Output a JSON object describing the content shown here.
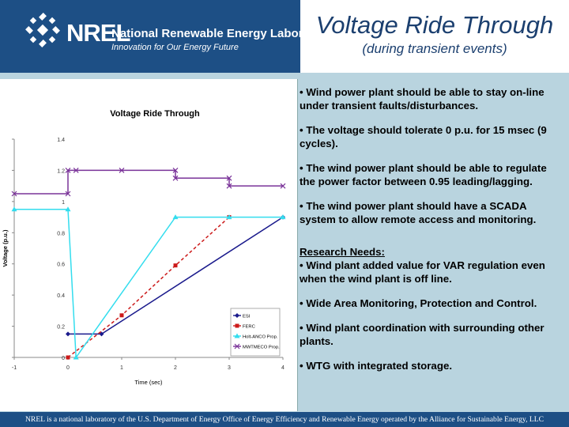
{
  "header": {
    "logo_text": "NREL",
    "org_name": "National Renewable Energy Laboratory",
    "tagline": "Innovation for Our Energy Future",
    "title": "Voltage Ride Through",
    "subtitle": "(during transient events)"
  },
  "bullets": [
    "• Wind power plant should be able to stay on-line under transient faults/disturbances.",
    "• The voltage should tolerate 0 p.u. for 15 msec (9 cycles).",
    "• The wind power plant should be able to regulate the power factor between 0.95 leading/lagging.",
    "• The wind power plant should have a SCADA system to allow remote access and monitoring."
  ],
  "research": {
    "heading": "Research Needs:",
    "items": [
      "• Wind plant added value for VAR regulation even when the wind plant is off line.",
      "• Wide Area Monitoring, Protection and Control.",
      "• Wind plant coordination with surrounding other plants.",
      "• WTG with integrated storage."
    ]
  },
  "footer": "NREL is a national laboratory of the U.S. Department of Energy Office of Energy Efficiency and Renewable Energy operated by the Alliance for Sustainable Energy, LLC",
  "chart_data": {
    "type": "line",
    "title": "Voltage Ride Through",
    "xlabel": "Time (sec)",
    "ylabel": "Voltage (p.u.)",
    "xlim": [
      -1,
      4
    ],
    "ylim": [
      0,
      1.4
    ],
    "xticks": [
      "-1",
      "0",
      "1",
      "2",
      "3",
      "4"
    ],
    "yticks": [
      "0",
      "0.2",
      "0.4",
      "0.6",
      "0.8",
      "1",
      "1.2",
      "1.4"
    ],
    "grid": false,
    "legend_position": "bottom-right",
    "series": [
      {
        "name": "ESI",
        "color": "#1a1a8c",
        "marker": "diamond",
        "x": [
          0,
          0.625,
          4
        ],
        "y": [
          0.15,
          0.15,
          0.9
        ]
      },
      {
        "name": "FERC",
        "color": "#cc1a1a",
        "marker": "square",
        "dash": true,
        "x": [
          0,
          1,
          2,
          3
        ],
        "y": [
          0,
          0.27,
          0.59,
          0.9
        ]
      },
      {
        "name": "Holt-ANCO Prop.",
        "color": "#33ddee",
        "marker": "triangle",
        "x": [
          -1,
          0,
          0.15,
          2,
          3,
          4
        ],
        "y": [
          0.95,
          0.95,
          0,
          0.9,
          0.9,
          0.9
        ]
      },
      {
        "name": "MWTMECO Prop.",
        "color": "#7a3399",
        "marker": "x",
        "x": [
          -1,
          0,
          0,
          0.15,
          1,
          2,
          2,
          3,
          3,
          4
        ],
        "y": [
          1.05,
          1.05,
          1.2,
          1.2,
          1.2,
          1.2,
          1.15,
          1.15,
          1.1,
          1.1
        ]
      }
    ]
  }
}
